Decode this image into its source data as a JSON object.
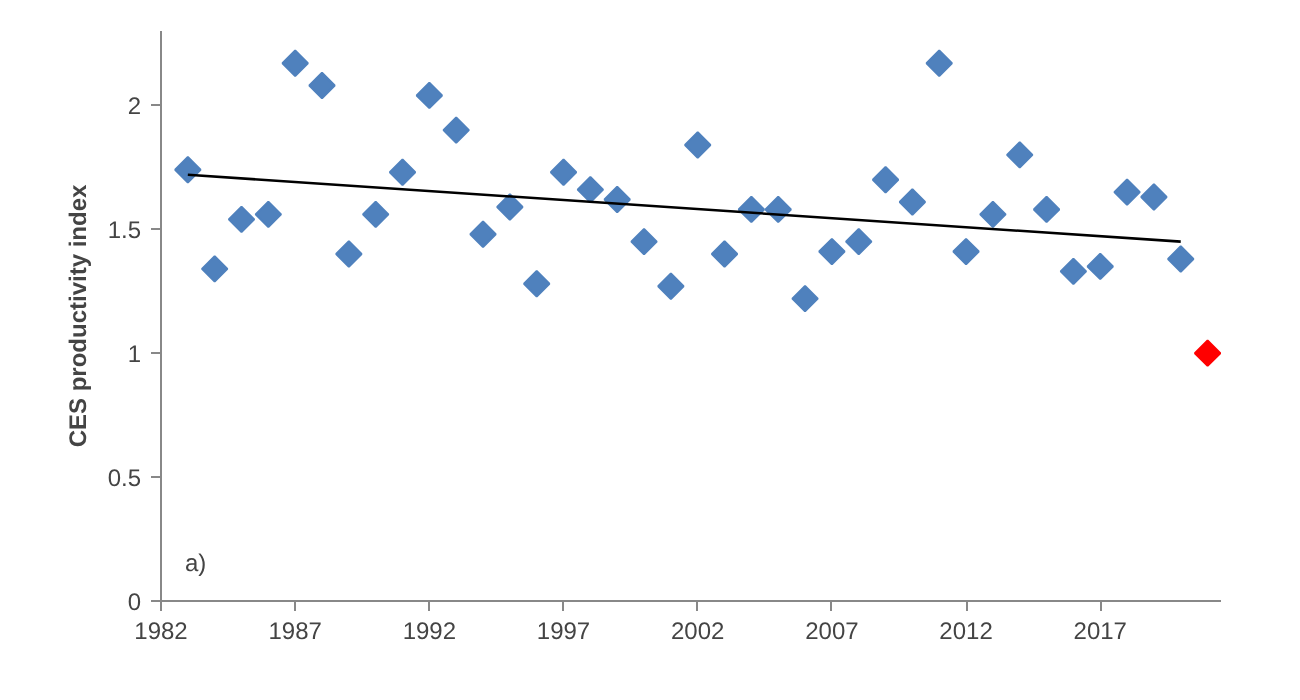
{
  "chart_data": {
    "type": "scatter",
    "ylabel": "CES productivity index",
    "annotations": [
      "a)"
    ],
    "xlim": [
      1982,
      2021.5
    ],
    "xticks": [
      1982,
      1987,
      1992,
      1997,
      2002,
      2007,
      2012,
      2017
    ],
    "ylim": [
      0,
      2.3
    ],
    "yticks": [
      0,
      0.5,
      1,
      1.5,
      2
    ],
    "grid": false,
    "series": [
      {
        "marker": "diamond",
        "color": "#4f81bd",
        "x": [
          1983,
          1984,
          1985,
          1986,
          1987,
          1988,
          1989,
          1990,
          1991,
          1992,
          1993,
          1994,
          1995,
          1996,
          1997,
          1998,
          1999,
          2000,
          2001,
          2002,
          2003,
          2004,
          2005,
          2006,
          2007,
          2008,
          2009,
          2010,
          2011,
          2012,
          2013,
          2014,
          2015,
          2016,
          2017,
          2018,
          2019,
          2020
        ],
        "values": [
          1.74,
          1.34,
          1.54,
          1.56,
          2.17,
          2.08,
          1.4,
          1.56,
          1.73,
          2.04,
          1.9,
          1.48,
          1.59,
          1.28,
          1.73,
          1.66,
          1.62,
          1.45,
          1.27,
          1.84,
          1.4,
          1.58,
          1.58,
          1.22,
          1.41,
          1.45,
          1.7,
          1.61,
          2.17,
          1.41,
          1.56,
          1.8,
          1.58,
          1.33,
          1.35,
          1.65,
          1.63,
          1.38
        ]
      },
      {
        "marker": "diamond",
        "color": "#ff0000",
        "x": [
          2021
        ],
        "values": [
          1.0
        ]
      },
      {
        "type": "line",
        "color": "#000000",
        "x": [
          1983,
          2020
        ],
        "values": [
          1.72,
          1.45
        ]
      }
    ]
  }
}
